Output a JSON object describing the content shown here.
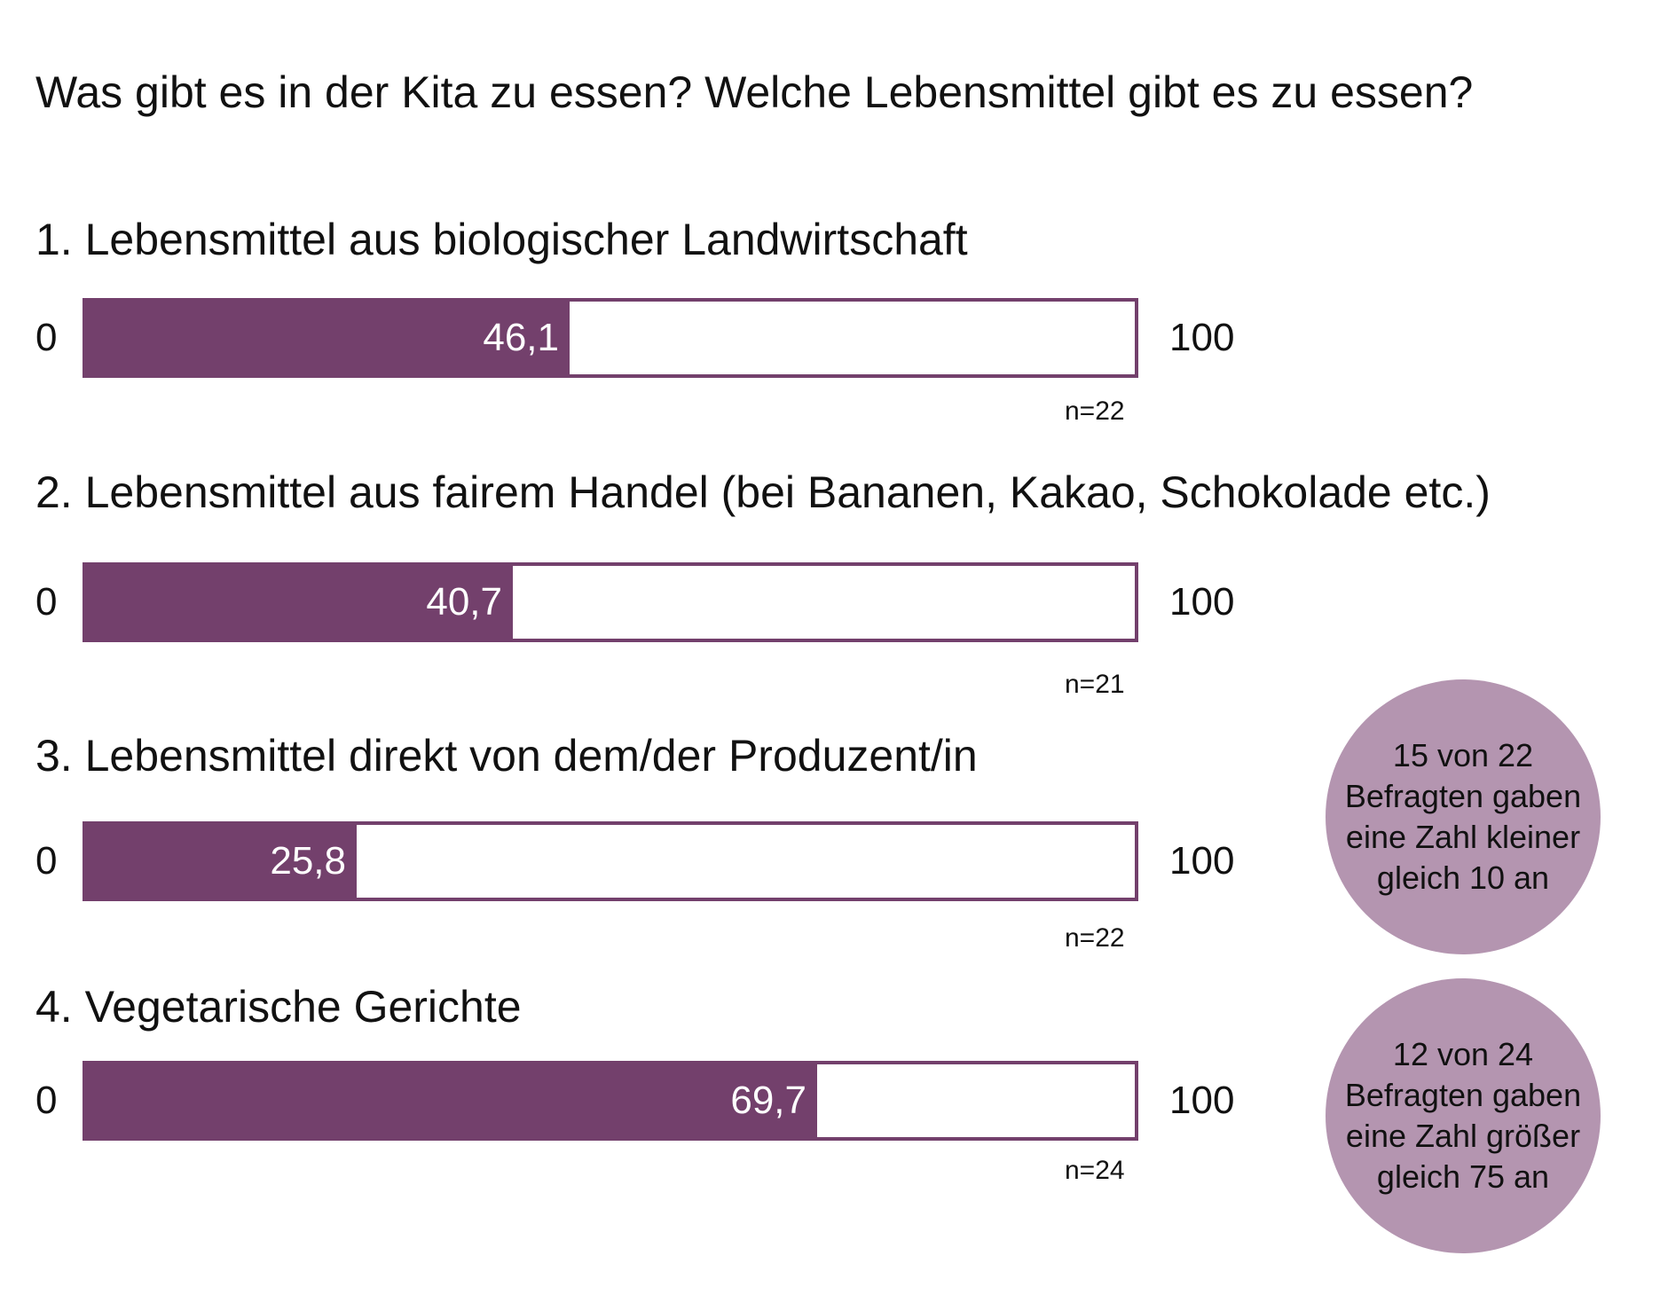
{
  "title": "Was gibt es in der Kita zu essen? Welche Lebensmittel gibt es zu essen?",
  "axis": {
    "min_label": "0",
    "max_label": "100"
  },
  "chart_data": {
    "type": "bar",
    "orientation": "horizontal",
    "title": "Was gibt es in der Kita zu essen? Welche Lebensmittel gibt es zu essen?",
    "xlim": [
      0,
      100
    ],
    "bar_color": "#73406c",
    "categories": [
      "1. Lebensmittel aus biologischer Landwirtschaft",
      "2. Lebensmittel aus fairem Handel (bei Bananen, Kakao, Schokolade etc.)",
      "3. Lebensmittel direkt von dem/der Produzent/in",
      "4. Vegetarische Gerichte"
    ],
    "values": [
      46.1,
      40.7,
      25.8,
      69.7
    ],
    "value_labels": [
      "46,1",
      "40,7",
      "25,8",
      "69,7"
    ],
    "n_labels": [
      "n=22",
      "n=21",
      "n=22",
      "n=24"
    ],
    "annotations": [
      {
        "category_index": 2,
        "lines": [
          "15 von 22",
          "Befragten gaben",
          "eine Zahl kleiner",
          "gleich 10 an"
        ],
        "color": "#b495b0"
      },
      {
        "category_index": 3,
        "lines": [
          "12 von 24",
          "Befragten gaben",
          "eine Zahl größer",
          "gleich 75 an"
        ],
        "color": "#b495b0"
      }
    ]
  }
}
